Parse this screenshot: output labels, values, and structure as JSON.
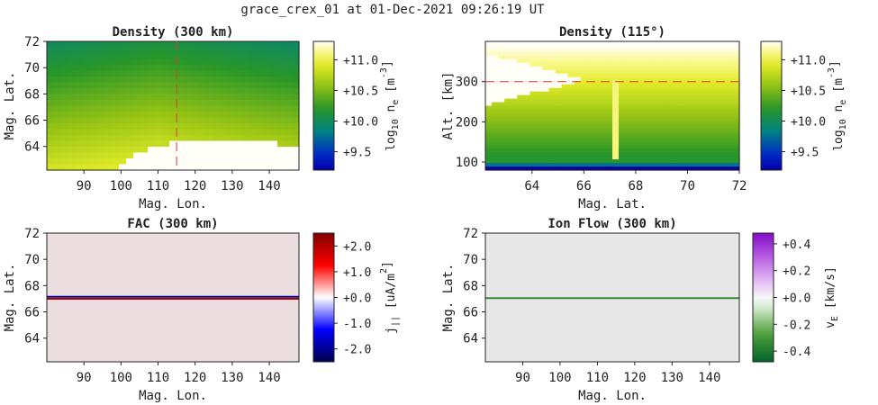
{
  "figure_title": "grace_crex_01 at 01-Dec-2021 09:26:19 UT",
  "chart_data": [
    {
      "id": "density_300km",
      "type": "heatmap",
      "title": "Density (300 km)",
      "xlabel": "Mag. Lon.",
      "ylabel": "Mag. Lat.",
      "xlim": [
        80,
        148
      ],
      "ylim": [
        62.2,
        72
      ],
      "xticks": [
        90,
        100,
        110,
        120,
        130,
        140
      ],
      "yticks": [
        64,
        66,
        68,
        70,
        72
      ],
      "colorbar": {
        "label_main": "log",
        "label_sub": "10",
        "label_var": " n",
        "label_var_sub": "e",
        "label_unit": " [m",
        "label_unit_sup": "-3",
        "label_end": "]",
        "colormap": "ocean_r",
        "range": [
          9.2,
          11.3
        ],
        "ticks": [
          "+9.5",
          "+10.0",
          "+10.5",
          "+11.0"
        ],
        "tick_values": [
          9.5,
          10.0,
          10.5,
          11.0
        ]
      },
      "cut_line": {
        "orientation": "vertical",
        "value": 115,
        "color": "#e0373a"
      },
      "x_tick_labels_visible": true,
      "y_tick_labels_visible": true
    },
    {
      "id": "density_115deg",
      "type": "heatmap",
      "title": "Density (115°)",
      "xlabel": "Mag. Lat.",
      "ylabel": "Alt. [km]",
      "xlim": [
        62.2,
        72
      ],
      "ylim": [
        80,
        400
      ],
      "xticks": [
        64,
        66,
        68,
        70,
        72
      ],
      "yticks": [
        100,
        200,
        300
      ],
      "colorbar": {
        "label_main": "log",
        "label_sub": "10",
        "label_var": " n",
        "label_var_sub": "e",
        "label_unit": " [m",
        "label_unit_sup": "-3",
        "label_end": "]",
        "colormap": "ocean_r",
        "range": [
          9.2,
          11.3
        ],
        "ticks": [
          "+9.5",
          "+10.0",
          "+10.5",
          "+11.0"
        ],
        "tick_values": [
          9.5,
          10.0,
          10.5,
          11.0
        ]
      },
      "cut_line": {
        "orientation": "horizontal",
        "value": 300,
        "color": "#e0373a"
      }
    },
    {
      "id": "fac_300km",
      "type": "heatmap",
      "title": "FAC (300 km)",
      "xlabel": "Mag. Lon.",
      "ylabel": "Mag. Lat.",
      "xlim": [
        80,
        148
      ],
      "ylim": [
        62.2,
        72
      ],
      "xticks": [
        90,
        100,
        110,
        120,
        130,
        140
      ],
      "yticks": [
        64,
        66,
        68,
        70,
        72
      ],
      "background_value": 0.15,
      "arc_lines": [
        {
          "lat": 67.15,
          "value": -2.0
        },
        {
          "lat": 67.0,
          "value": 2.0
        }
      ],
      "colorbar": {
        "label_main": "j",
        "label_sub": "||",
        "label_unit": "  [uA/m",
        "label_unit_sup": "2",
        "label_end": "]",
        "colormap": "seismic",
        "range": [
          -2.5,
          2.5
        ],
        "ticks": [
          "-2.0",
          "-1.0",
          "+0.0",
          "+1.0",
          "+2.0"
        ],
        "tick_values": [
          -2.0,
          -1.0,
          0.0,
          1.0,
          2.0
        ]
      }
    },
    {
      "id": "ionflow_300km",
      "type": "heatmap",
      "title": "Ion Flow (300 km)",
      "xlabel": "Mag. Lon.",
      "ylabel": "Mag. Lat.",
      "xlim": [
        80,
        148
      ],
      "ylim": [
        62.2,
        72
      ],
      "xticks": [
        90,
        100,
        110,
        120,
        130,
        140
      ],
      "yticks": [
        64,
        66,
        68,
        70,
        72
      ],
      "background_value": 0.0,
      "arc_lines": [
        {
          "lat": 67.05,
          "value": -0.35
        }
      ],
      "colorbar": {
        "label_main": "v",
        "label_sub": "E",
        "label_unit": "  [km/s]",
        "label_unit_sup": "",
        "label_end": "",
        "colormap": "PRGn",
        "range": [
          -0.48,
          0.48
        ],
        "ticks": [
          "-0.4",
          "-0.2",
          "+0.0",
          "+0.2",
          "+0.4"
        ],
        "tick_values": [
          -0.4,
          -0.2,
          0.0,
          0.2,
          0.4
        ]
      }
    }
  ]
}
